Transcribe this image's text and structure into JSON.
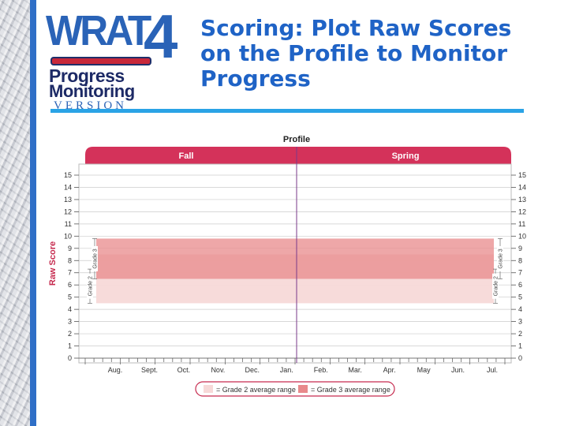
{
  "logo": {
    "wrat": "WRAT",
    "number": "4",
    "line1": "Progress",
    "line2": "Monitoring",
    "version": "VERSION"
  },
  "slide_title": "Scoring: Plot Raw Scores on the Profile to Monitor Progress",
  "profile": {
    "title": "Profile",
    "season_left": "Fall",
    "season_right": "Spring",
    "y_axis_label": "Raw Score",
    "y_ticks": [
      0,
      1,
      2,
      3,
      4,
      5,
      6,
      7,
      8,
      9,
      10,
      11,
      12,
      13,
      14,
      15
    ],
    "months": [
      "Aug.",
      "Sept.",
      "Oct.",
      "Nov.",
      "Dec.",
      "Jan.",
      "Feb.",
      "Mar.",
      "Apr.",
      "May",
      "Jun.",
      "Jul."
    ],
    "grade2_label": "Grade 2",
    "grade3_label": "Grade 3",
    "grade2_range": [
      4.5,
      8.5
    ],
    "grade3_range": [
      6.5,
      9.8
    ],
    "legend": {
      "grade2": "= Grade 2 average range",
      "grade3": "= Grade 3 average range"
    },
    "colors": {
      "header": "#d4325a",
      "grade2": "#f7d9d8",
      "grade3": "#e8898b",
      "grid": "#cccccc",
      "divider": "#7a3a8a"
    }
  }
}
